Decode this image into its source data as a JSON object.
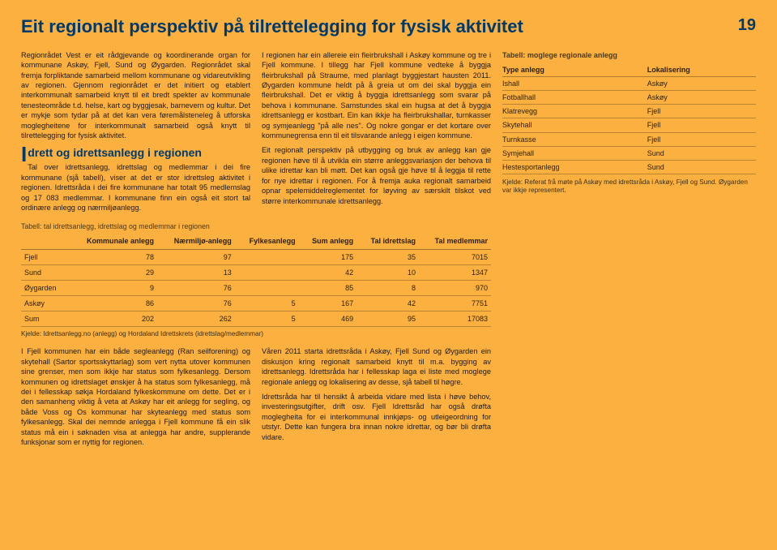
{
  "page_number": "19",
  "title": "Eit regionalt perspektiv på tilrettelegging for fysisk aktivitet",
  "col1": {
    "p1": "Regionrådet Vest er eit rådgjevande og koordinerande organ for kommunane Askøy, Fjell, Sund og Øygarden. Regionrådet skal fremja forpliktande samarbeid mellom kommunane og vidareutvikling av regionen. Gjennom regionrådet er det initiert og etablert interkommunalt samarbeid knytt til eit bredt spekter av kommunale tenesteområde t.d. helse, kart og byggjesak, barnevern og kultur. Det er mykje som tydar på at det kan vera føremålsteneleg å utforska moglegheitene for interkommunalt samarbeid også knytt til tilrettelegging for fysisk aktivitet.",
    "subhead": "drett og idrettsanlegg i regionen",
    "p2": "Tal over idrettsanlegg, idrettslag og medlemmar i dei fire kommunane (sjå tabell), viser at det er stor idrettsleg aktivitet i regionen. Idrettsråda i dei fire kommunane har totalt 95 medlemslag og 17 083 medlemmar. I kommunane finn ein også eit stort tal ordinære anlegg og nærmiljøanlegg."
  },
  "col2": {
    "p1": "I regionen har ein allereie ein fleirbrukshall i Askøy kommune og tre i Fjell kommune. I tillegg har Fjell kommune vedteke å byggja fleirbrukshall på Straume, med planlagt byggjestart hausten 2011. Øygarden kommune heldt på å greia ut om dei skal byggja ein fleirbrukshall. Det er viktig å byggja idrettsanlegg som svarar på behova i kommunane. Samstundes skal ein hugsa at det å byggja idrettsanlegg er kostbart. Ein kan ikkje ha fleirbrukshallar, turnkasser og symjeanlegg \"på alle nes\". Og nokre gongar er det kortare over kommunegrensa enn til eit tilsvarande anlegg i eigen kommune.",
    "p2": "Eit regionalt perspektiv på utbygging og bruk av anlegg kan gje regionen høve til å utvikla ein større anleggsvariasjon der behova til ulike idrettar kan bli møtt. Det kan også gje høve til å leggja til rette for nye idrettar i regionen. For å fremja auka regionalt samarbeid opnar spelemiddelreglementet for løyving av særskilt tilskot ved større interkommunale idrettsanlegg."
  },
  "side": {
    "title": "Tabell: moglege regionale anlegg",
    "headers": [
      "Type anlegg",
      "Lokalisering"
    ],
    "rows": [
      [
        "Ishall",
        "Askøy"
      ],
      [
        "Fotballhall",
        "Askøy"
      ],
      [
        "Klatrevegg",
        "Fjell"
      ],
      [
        "Skytehall",
        "Fjell"
      ],
      [
        "Turnkasse",
        "Fjell"
      ],
      [
        "Symjehall",
        "Sund"
      ],
      [
        "Hestesportanlegg",
        "Sund"
      ]
    ],
    "source": "Kjelde: Referat frå møte på Askøy med idrettsråda i Askøy, Fjell og Sund. Øygarden var ikkje representert."
  },
  "table": {
    "caption": "Tabell: tal idrettsanlegg, idrettslag og medlemmar i regionen",
    "headers": [
      "",
      "Kommunale anlegg",
      "Nærmiljø-anlegg",
      "Fylkesanlegg",
      "Sum anlegg",
      "Tal idrettslag",
      "Tal medlemmar"
    ],
    "rows": [
      [
        "Fjell",
        "78",
        "97",
        "",
        "175",
        "35",
        "7015"
      ],
      [
        "Sund",
        "29",
        "13",
        "",
        "42",
        "10",
        "1347"
      ],
      [
        "Øygarden",
        "9",
        "76",
        "",
        "85",
        "8",
        "970"
      ],
      [
        "Askøy",
        "86",
        "76",
        "5",
        "167",
        "42",
        "7751"
      ],
      [
        "Sum",
        "202",
        "262",
        "5",
        "469",
        "95",
        "17083"
      ]
    ],
    "source": "Kjelde: Idrettsanlegg.no (anlegg) og Hordaland Idrettskrets (idrettslag/medlemmar)"
  },
  "lower1": {
    "p1": "I Fjell kommunen har ein både segleanlegg (Ran seilforening) og skytehall (Sartor sportsskyttarlag) som vert nytta utover kommunen sine grenser, men som ikkje har status som fylkesanlegg. Dersom kommunen og idrettslaget ønskjer å ha status som fylkesanlegg, må dei i fellesskap søkja Hordaland fylkeskommune om dette. Det er i den samanheng viktig å veta at Askøy har eit anlegg for segling, og både Voss og Os kommunar har skyteanlegg med status som fylkesanlegg. Skal dei nemnde anlegga i Fjell kommune få ein slik status må ein i søknaden visa at anlegga har andre, supplerande funksjonar som er nyttig for regionen."
  },
  "lower2": {
    "p1": "Våren 2011 starta idrettsråda i Askøy, Fjell Sund og Øygarden ein diskusjon kring regionalt samarbeid knytt til m.a. bygging av idrettsanlegg. Idrettsråda har i fellesskap laga ei liste med moglege regionale anlegg og lokalisering av desse, sjå tabell til høgre.",
    "p2": "Idrettsråda har til hensikt å arbeida vidare med lista i høve behov, investeringsutgifter, drift osv. Fjell Idrettsråd har også drøfta moglegheita for ei interkommunal innkjøps- og utleigeordning for utstyr. Dette kan fungera bra innan nokre idrettar, og bør bli drøfta vidare."
  }
}
